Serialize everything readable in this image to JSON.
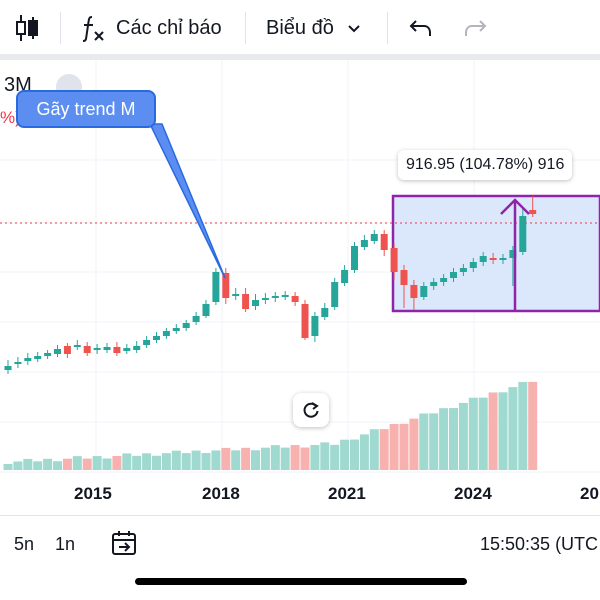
{
  "toolbar": {
    "indicators_label": "Các chỉ báo",
    "chart_type_label": "Biểu đồ"
  },
  "chart": {
    "symbol_fragment": "3M",
    "change_fragment": "%)",
    "callout_text": "Gãy trend M",
    "measure_label": "916.95 (104.78%) 916",
    "x_axis_years": [
      "2015",
      "2018",
      "2021",
      "2024",
      "20"
    ],
    "colors": {
      "up": "#26a69a",
      "down": "#ef5350",
      "vol_up": "#9fd9cf",
      "vol_down": "#f7b2b0",
      "range_box": "#8e24aa",
      "range_fill": "#dbe7fb"
    }
  },
  "bottom": {
    "interval_5n": "5n",
    "interval_1n": "1n",
    "time": "15:50:35 (UTC"
  }
}
